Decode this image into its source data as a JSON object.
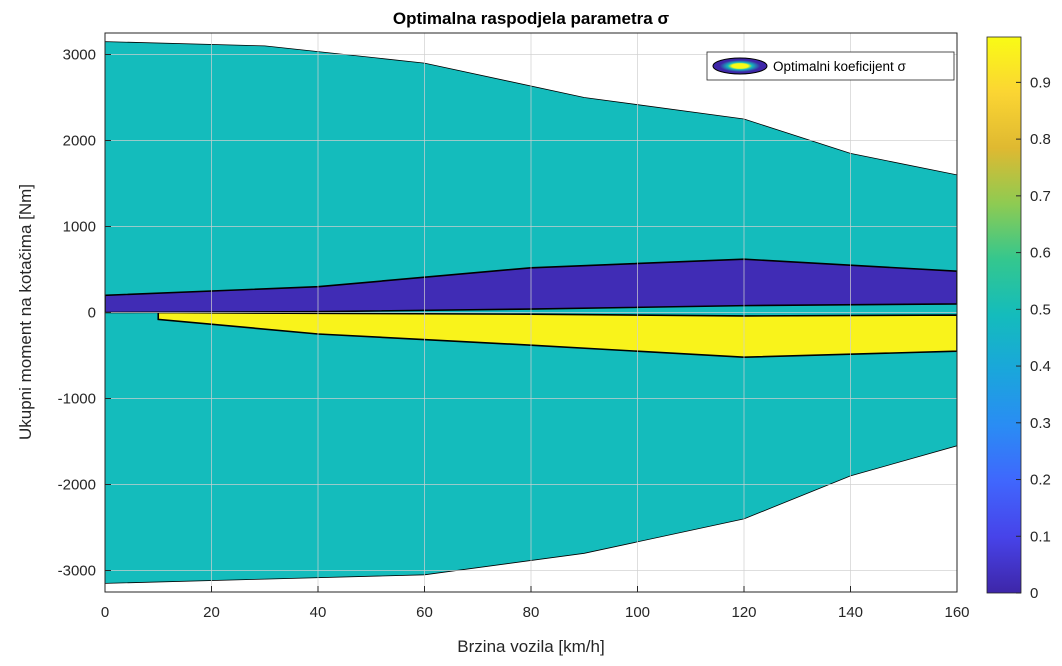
{
  "chart_data": {
    "type": "heatmap",
    "subtype": "filled-contour",
    "title": "Optimalna raspodjela parametra σ",
    "xlabel": "Brzina vozila [km/h]",
    "ylabel": "Ukupni moment na kotačima [Nm]",
    "xlim": [
      0,
      160
    ],
    "ylim": [
      -3250,
      3250
    ],
    "xticks": [
      "0",
      "20",
      "40",
      "60",
      "80",
      "100",
      "120",
      "140",
      "160"
    ],
    "yticks": [
      "-3000",
      "-2000",
      "-1000",
      "0",
      "1000",
      "2000",
      "3000"
    ],
    "grid": true,
    "legend": {
      "position": "top-right",
      "entries": [
        "Optimalni koeficijent σ"
      ]
    },
    "colorbar": {
      "colormap": "parula",
      "clim": [
        0,
        0.98
      ],
      "ticks": [
        "0",
        "0.1",
        "0.2",
        "0.3",
        "0.4",
        "0.5",
        "0.6",
        "0.7",
        "0.8",
        "0.9"
      ]
    },
    "domain_envelope": {
      "speed": [
        0,
        30,
        60,
        90,
        120,
        140,
        160
      ],
      "torque_max": [
        3150,
        3100,
        2900,
        2500,
        2250,
        1850,
        1600
      ],
      "torque_min": [
        -3150,
        -3100,
        -3050,
        -2800,
        -2400,
        -1900,
        -1550
      ]
    },
    "regions": [
      {
        "name": "low sigma band (positive torque)",
        "sigma": 0.02,
        "speed": [
          0,
          40,
          80,
          120,
          160
        ],
        "torque_upper": [
          200,
          300,
          520,
          620,
          480
        ],
        "torque_lower": [
          0,
          10,
          40,
          80,
          100
        ]
      },
      {
        "name": "high sigma band (negative torque)",
        "sigma": 0.98,
        "speed": [
          10,
          40,
          80,
          120,
          160
        ],
        "torque_upper": [
          0,
          -10,
          -20,
          -40,
          -30
        ],
        "torque_lower": [
          -80,
          -250,
          -380,
          -520,
          -450
        ]
      },
      {
        "name": "background",
        "sigma": 0.5
      }
    ]
  }
}
